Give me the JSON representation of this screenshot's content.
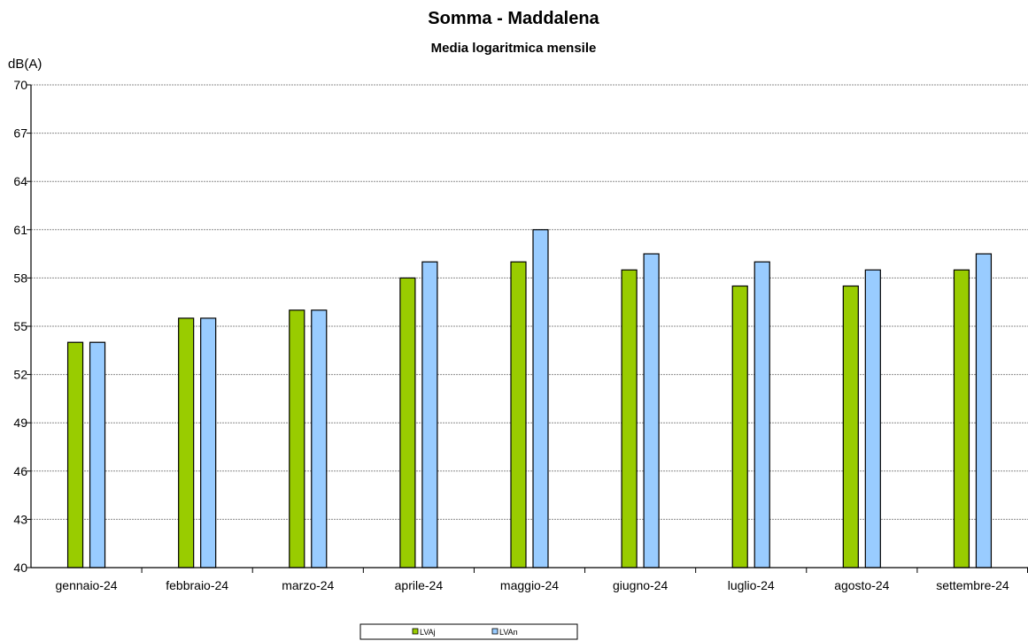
{
  "chart_data": {
    "type": "bar",
    "title": "Somma - Maddalena",
    "subtitle": "Media logaritmica mensile",
    "ylabel": "dB(A)",
    "xlabel": "",
    "ylim": [
      40,
      70
    ],
    "yticks": [
      "40",
      "43",
      "46",
      "49",
      "52",
      "55",
      "58",
      "61",
      "64",
      "67",
      "70"
    ],
    "categories": [
      "gennaio-24",
      "febbraio-24",
      "marzo-24",
      "aprile-24",
      "maggio-24",
      "giugno-24",
      "luglio-24",
      "agosto-24",
      "settembre-24"
    ],
    "series": [
      {
        "name": "LVAj",
        "color": "#99cc00",
        "values": [
          54.0,
          55.5,
          56.0,
          58.0,
          59.0,
          58.5,
          57.5,
          57.5,
          58.5
        ]
      },
      {
        "name": "LVAn",
        "color": "#99ccff",
        "values": [
          54.0,
          55.5,
          56.0,
          59.0,
          61.0,
          59.5,
          59.0,
          58.5,
          59.5
        ]
      }
    ],
    "grid": true,
    "legend_position": "bottom"
  }
}
